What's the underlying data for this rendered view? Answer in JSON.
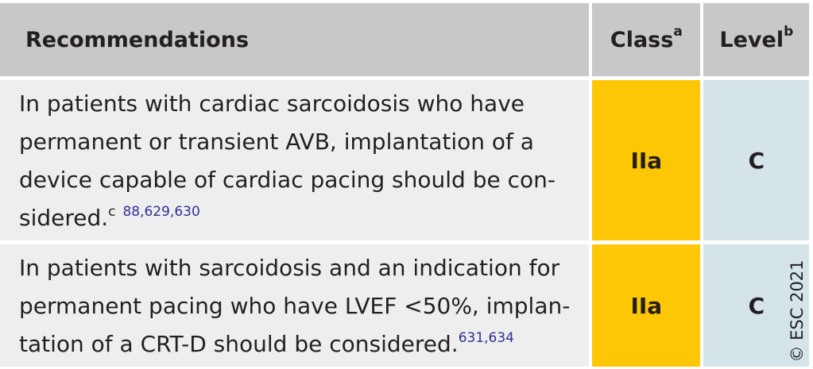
{
  "header": {
    "recommendations": "Recommendations",
    "class": "Class",
    "class_fn": "a",
    "level": "Level",
    "level_fn": "b"
  },
  "rows": [
    {
      "lines": [
        "In patients with cardiac sarcoidosis who have",
        "permanent or transient AVB, implantation of a",
        "device capable of cardiac pacing should be con-",
        "sidered."
      ],
      "footnote": "c",
      "refs": "88,629,630",
      "class": "IIa",
      "level": "C"
    },
    {
      "lines": [
        "In patients with sarcoidosis and an indication for",
        "permanent pacing who have LVEF <50%, implan-",
        "tation of a CRT-D should be considered."
      ],
      "footnote": "",
      "refs": "631,634",
      "class": "IIa",
      "level": "C"
    }
  ],
  "copyright": "© ESC 2021"
}
